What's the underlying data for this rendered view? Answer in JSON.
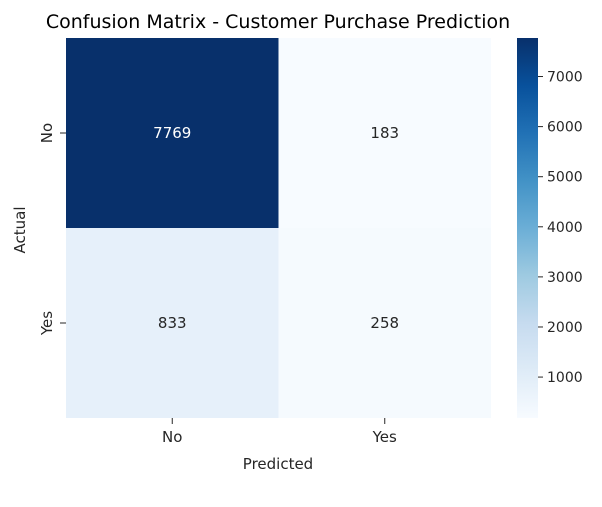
{
  "chart_data": {
    "type": "heatmap",
    "title": "Confusion Matrix - Customer Purchase Prediction",
    "xlabel": "Predicted",
    "ylabel": "Actual",
    "x_categories": [
      "No",
      "Yes"
    ],
    "y_categories": [
      "No",
      "Yes"
    ],
    "values": [
      [
        7769,
        183
      ],
      [
        833,
        258
      ]
    ],
    "colormap": "Blues",
    "colorbar": {
      "min": 183,
      "max": 7769,
      "ticks": [
        1000,
        2000,
        3000,
        4000,
        5000,
        6000,
        7000
      ]
    },
    "cell_text_colors": {
      "dark": "#ffffff",
      "light": "#262626"
    }
  }
}
